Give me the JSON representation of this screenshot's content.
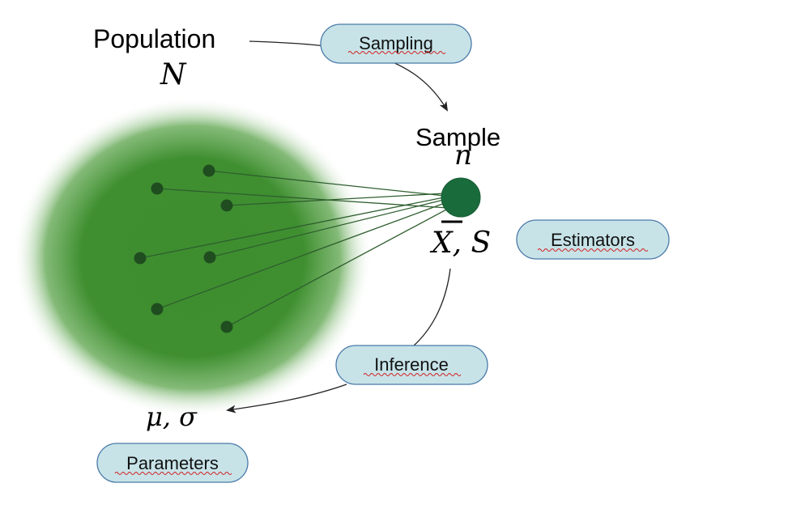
{
  "population": {
    "label": "Population",
    "symbol": "N"
  },
  "sample": {
    "label": "Sample",
    "symbol": "n"
  },
  "estimators": {
    "symbol_mean": "X",
    "symbol_rest": ", S"
  },
  "parameters": {
    "symbols": "μ, σ"
  },
  "pills": {
    "sampling": "Sampling",
    "estimators": "Estimators",
    "inference": "Inference",
    "parameters": "Parameters"
  },
  "colors": {
    "population_cloud": "#3e8e2f",
    "sample_dot": "#1a6b3c",
    "member_dot": "#1f4d1f",
    "connector_line": "#2f5f2f",
    "pill_fill": "#c7e3e8",
    "pill_stroke": "#4a7aa8",
    "arrow": "#222222",
    "spellcheck": "#d21f1f"
  }
}
